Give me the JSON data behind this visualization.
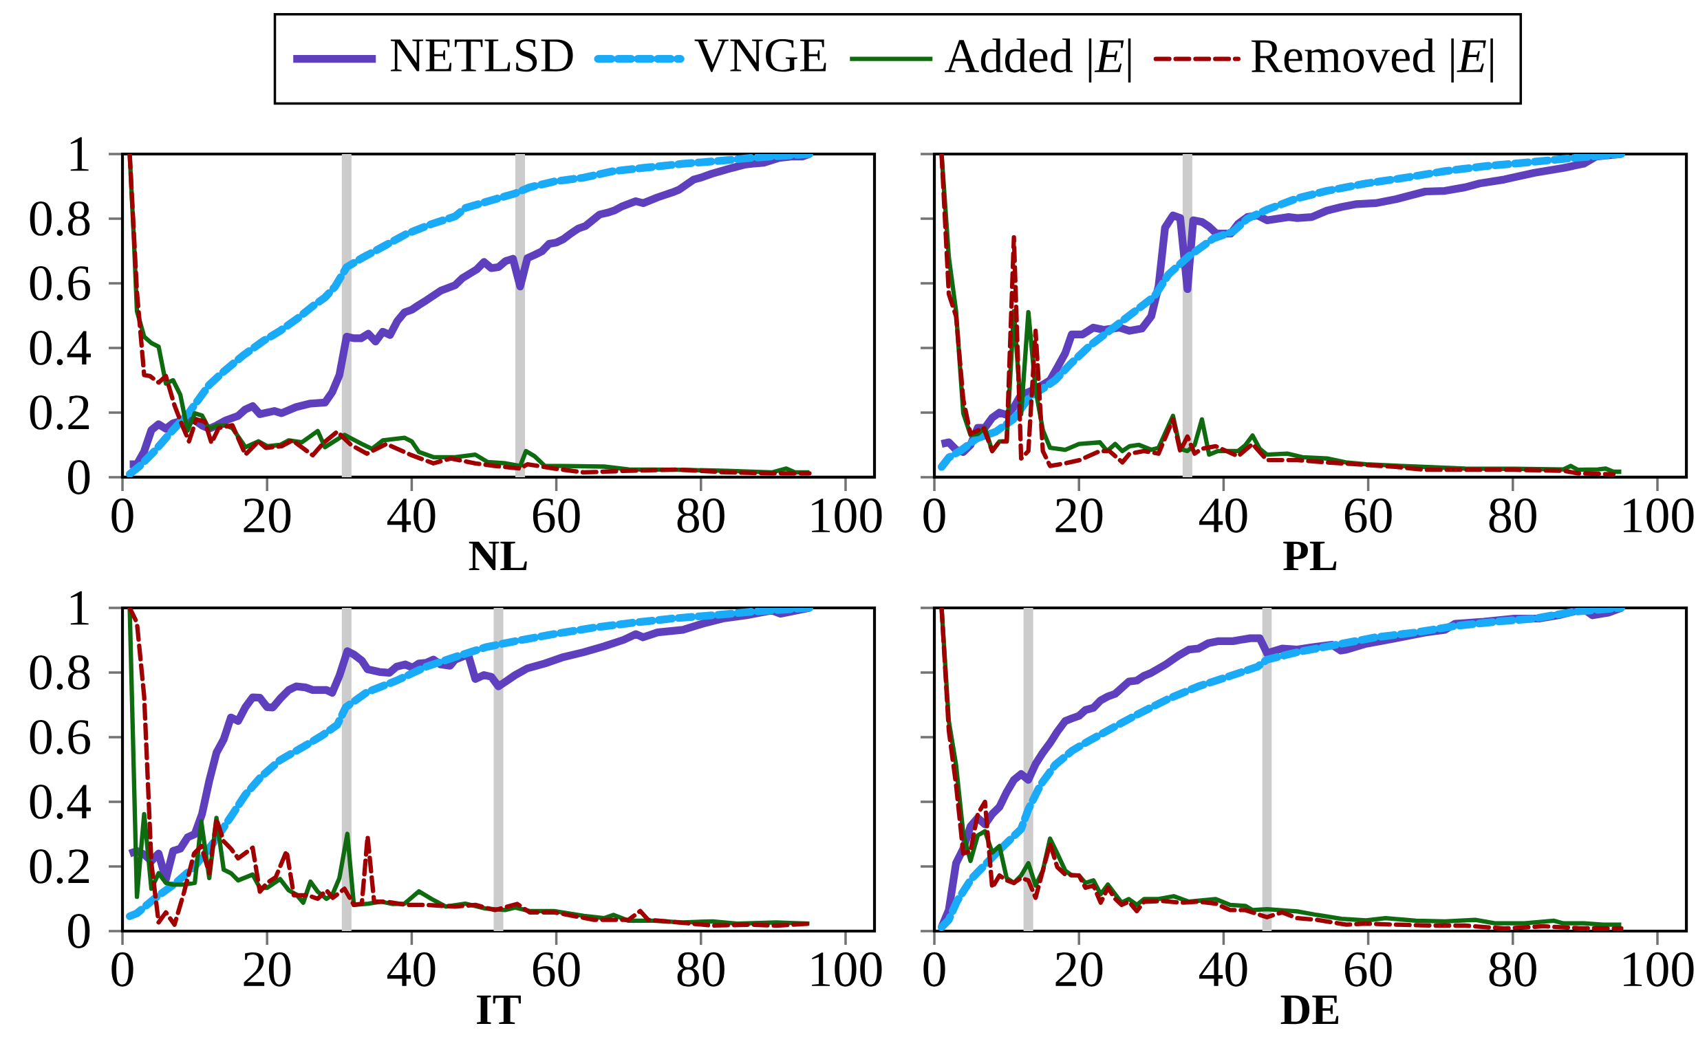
{
  "chart_data": [
    {
      "type": "line",
      "xlabel": "NL",
      "xlim": [
        0,
        104
      ],
      "ylim": [
        0,
        1
      ],
      "xticks": [
        0,
        20,
        40,
        60,
        80,
        100
      ],
      "yticks": [
        0,
        0.2,
        0.4,
        0.6,
        0.8,
        1
      ],
      "legend": "top",
      "ref_lines": [
        {
          "axis": "x",
          "value": 31,
          "color": "#cccccc"
        },
        {
          "axis": "x",
          "value": 55,
          "color": "#cccccc"
        }
      ],
      "series": [
        {
          "name": "NETLSD",
          "color": "#5e3fbe",
          "line_style": "solid",
          "x": [
            1,
            2,
            3,
            4,
            5,
            6,
            7,
            8.5,
            10,
            11,
            12,
            13,
            14.3,
            16,
            17,
            18,
            19,
            21,
            22,
            24,
            26,
            28,
            29,
            30,
            31,
            32,
            33,
            34,
            35,
            36,
            37,
            38,
            39,
            40,
            41,
            42,
            43,
            44,
            46,
            47,
            49,
            50,
            51,
            52,
            53,
            54,
            55,
            56,
            57,
            58,
            59,
            60,
            61,
            62,
            63,
            64,
            65,
            66,
            67,
            68,
            69,
            71,
            72,
            74,
            76,
            77,
            79,
            80,
            81.5,
            84.3,
            86,
            87,
            88.7,
            90.8,
            92.5,
            94,
            95
          ],
          "values": [
            0.04,
            0.04,
            0.08,
            0.146,
            0.164,
            0.15,
            0.167,
            0.176,
            0.176,
            0.16,
            0.15,
            0.16,
            0.176,
            0.19,
            0.21,
            0.22,
            0.195,
            0.205,
            0.198,
            0.217,
            0.228,
            0.231,
            0.263,
            0.316,
            0.435,
            0.43,
            0.43,
            0.444,
            0.42,
            0.45,
            0.44,
            0.483,
            0.51,
            0.518,
            0.533,
            0.547,
            0.562,
            0.577,
            0.594,
            0.616,
            0.643,
            0.666,
            0.647,
            0.65,
            0.669,
            0.676,
            0.59,
            0.678,
            0.688,
            0.699,
            0.722,
            0.726,
            0.737,
            0.754,
            0.769,
            0.777,
            0.795,
            0.813,
            0.818,
            0.825,
            0.837,
            0.854,
            0.848,
            0.866,
            0.881,
            0.89,
            0.921,
            0.927,
            0.939,
            0.957,
            0.967,
            0.97,
            0.973,
            0.988,
            0.992,
            0.992,
            1.0
          ]
        },
        {
          "name": "VNGE",
          "color": "#19aaf8",
          "line_style": "dashed",
          "x": [
            1,
            2.4,
            4.4,
            6.5,
            9.2,
            12,
            14,
            16.7,
            19.5,
            21.8,
            24.2,
            26.3,
            28,
            29.4,
            31,
            33.1,
            36.5,
            39.2,
            42.7,
            46,
            47.4,
            50.9,
            54.3,
            56.3,
            59.7,
            63.8,
            67.9,
            72,
            77.5,
            81.6,
            87,
            95
          ],
          "values": [
            0.01,
            0.035,
            0.08,
            0.134,
            0.2,
            0.286,
            0.327,
            0.377,
            0.422,
            0.453,
            0.491,
            0.529,
            0.556,
            0.59,
            0.65,
            0.678,
            0.719,
            0.752,
            0.783,
            0.807,
            0.833,
            0.856,
            0.878,
            0.897,
            0.915,
            0.927,
            0.947,
            0.957,
            0.97,
            0.977,
            0.988,
            1.0
          ]
        },
        {
          "name": "Added |*E*|",
          "color": "#0f6b0f",
          "line_style": "solid",
          "x": [
            1,
            1.6,
            2,
            3,
            4,
            5,
            6,
            7,
            8,
            9,
            10,
            11,
            12,
            13,
            14.3,
            15.2,
            17,
            18.8,
            20,
            21.8,
            23,
            24.8,
            27,
            28,
            30.7,
            33.1,
            34.5,
            36,
            39,
            40,
            41,
            43,
            46,
            48.8,
            50.5,
            53,
            55,
            55.8,
            57,
            58.4,
            61,
            66.6,
            70,
            76.8,
            83.6,
            89.8,
            91.8,
            93,
            95
          ],
          "values": [
            1.0,
            0.726,
            0.514,
            0.435,
            0.415,
            0.404,
            0.29,
            0.3,
            0.255,
            0.144,
            0.198,
            0.191,
            0.149,
            0.16,
            0.16,
            0.152,
            0.093,
            0.111,
            0.096,
            0.1,
            0.114,
            0.108,
            0.143,
            0.093,
            0.131,
            0.103,
            0.088,
            0.114,
            0.122,
            0.111,
            0.078,
            0.062,
            0.062,
            0.07,
            0.047,
            0.043,
            0.035,
            0.081,
            0.065,
            0.035,
            0.035,
            0.033,
            0.024,
            0.023,
            0.02,
            0.015,
            0.027,
            0.015,
            0.015
          ]
        },
        {
          "name": "Removed |*E*|",
          "color": "#a00000",
          "line_style": "dashed",
          "x": [
            1,
            2,
            3,
            3.8,
            5,
            6,
            7.2,
            8.2,
            9.2,
            10.2,
            11.4,
            12.3,
            13.3,
            15.2,
            17,
            18.8,
            19.8,
            22,
            23.5,
            24.6,
            26.3,
            27.8,
            29.7,
            31.6,
            33.8,
            36.5,
            40,
            43,
            45.4,
            48.8,
            51.5,
            55,
            56,
            59.7,
            63.8,
            70,
            76.8,
            83.6,
            89.8,
            95
          ],
          "values": [
            1.0,
            0.574,
            0.316,
            0.313,
            0.293,
            0.313,
            0.222,
            0.164,
            0.111,
            0.179,
            0.172,
            0.106,
            0.152,
            0.161,
            0.07,
            0.111,
            0.091,
            0.096,
            0.114,
            0.096,
            0.068,
            0.106,
            0.141,
            0.1,
            0.073,
            0.103,
            0.068,
            0.043,
            0.058,
            0.043,
            0.035,
            0.027,
            0.04,
            0.027,
            0.015,
            0.02,
            0.024,
            0.015,
            0.012,
            0.012
          ]
        }
      ]
    },
    {
      "type": "line",
      "xlabel": "PL",
      "xlim": [
        0,
        104
      ],
      "ylim": [
        0,
        1
      ],
      "xticks": [
        0,
        20,
        40,
        60,
        80,
        100
      ],
      "yticks": [
        0,
        0.2,
        0.4,
        0.6,
        0.8,
        1
      ],
      "tick_labels": "x",
      "ref_lines": [
        {
          "axis": "x",
          "value": 35,
          "color": "#cccccc"
        }
      ],
      "series": [
        {
          "color": "#5e3fbe",
          "line_style": "solid",
          "x": [
            1,
            2,
            3,
            4,
            5,
            6,
            7,
            8,
            9,
            10,
            11,
            12,
            13,
            14,
            15,
            16,
            17,
            18.1,
            19,
            20.5,
            22,
            23.5,
            25.6,
            27,
            28.7,
            30,
            31,
            31.9,
            33,
            34,
            35,
            35.8,
            37,
            38,
            39,
            41,
            42,
            43.3,
            44.7,
            46,
            49,
            50.2,
            52.2,
            54.3,
            56.3,
            58.4,
            61,
            63.8,
            67.9,
            70.6,
            73.4,
            75.4,
            78.8,
            83,
            87,
            89.8,
            91.5,
            95
          ],
          "values": [
            0.103,
            0.108,
            0.085,
            0.078,
            0.1,
            0.153,
            0.153,
            0.184,
            0.2,
            0.193,
            0.217,
            0.255,
            0.263,
            0.274,
            0.286,
            0.3,
            0.339,
            0.384,
            0.442,
            0.442,
            0.463,
            0.456,
            0.463,
            0.453,
            0.46,
            0.498,
            0.59,
            0.772,
            0.81,
            0.802,
            0.582,
            0.795,
            0.79,
            0.775,
            0.754,
            0.754,
            0.784,
            0.805,
            0.81,
            0.795,
            0.805,
            0.802,
            0.805,
            0.825,
            0.836,
            0.845,
            0.848,
            0.86,
            0.884,
            0.886,
            0.897,
            0.909,
            0.921,
            0.942,
            0.957,
            0.97,
            0.992,
            1.0
          ]
        },
        {
          "color": "#19aaf8",
          "line_style": "dashed",
          "x": [
            1,
            2,
            3.8,
            5.8,
            8.5,
            10.9,
            13.3,
            15,
            16.7,
            18.8,
            21.5,
            24.9,
            27.6,
            30.4,
            32.4,
            35.2,
            38.6,
            41.3,
            43.3,
            46,
            50.2,
            54.3,
            59.7,
            65.2,
            70.6,
            76,
            81.6,
            87,
            95
          ],
          "values": [
            0.032,
            0.061,
            0.085,
            0.119,
            0.141,
            0.179,
            0.252,
            0.274,
            0.3,
            0.35,
            0.407,
            0.465,
            0.511,
            0.559,
            0.628,
            0.684,
            0.739,
            0.76,
            0.8,
            0.828,
            0.863,
            0.886,
            0.909,
            0.927,
            0.947,
            0.962,
            0.973,
            0.985,
            1.0
          ]
        },
        {
          "color": "#0f6b0f",
          "line_style": "solid",
          "x": [
            1,
            2,
            3,
            4,
            5,
            6,
            7,
            8,
            9,
            10,
            11,
            12,
            13,
            14,
            15,
            16,
            18.1,
            20,
            22.9,
            23.9,
            25,
            26,
            27,
            28.3,
            30,
            31,
            33,
            34,
            35,
            36,
            37,
            38,
            39.2,
            42,
            43,
            44,
            45,
            46,
            48.8,
            50.9,
            54.3,
            56.9,
            59.7,
            66.6,
            73.4,
            80.2,
            87,
            88,
            89,
            91.8,
            92.8,
            93.9,
            95
          ],
          "values": [
            1.0,
            0.681,
            0.514,
            0.198,
            0.131,
            0.134,
            0.152,
            0.081,
            0.111,
            0.111,
            0.514,
            0.195,
            0.511,
            0.271,
            0.146,
            0.091,
            0.085,
            0.103,
            0.108,
            0.081,
            0.103,
            0.081,
            0.096,
            0.1,
            0.085,
            0.091,
            0.19,
            0.088,
            0.081,
            0.1,
            0.179,
            0.07,
            0.081,
            0.081,
            0.099,
            0.129,
            0.088,
            0.07,
            0.073,
            0.062,
            0.058,
            0.046,
            0.04,
            0.033,
            0.027,
            0.026,
            0.024,
            0.035,
            0.023,
            0.024,
            0.027,
            0.017,
            0.017
          ]
        },
        {
          "color": "#a00000",
          "line_style": "dashed",
          "x": [
            1,
            2,
            3,
            4,
            5,
            6.8,
            8,
            9,
            10,
            11,
            12,
            13,
            14,
            15,
            16,
            18.1,
            20.1,
            22.9,
            24.2,
            26,
            27,
            29,
            31,
            33,
            34,
            35,
            36,
            37,
            38.9,
            42,
            44,
            46,
            50.2,
            54.3,
            58.4,
            63.8,
            67.9,
            73.4,
            80.2,
            87,
            89,
            93.9
          ],
          "values": [
            1.0,
            0.567,
            0.498,
            0.24,
            0.134,
            0.153,
            0.081,
            0.111,
            0.111,
            0.742,
            0.058,
            0.081,
            0.453,
            0.081,
            0.035,
            0.043,
            0.053,
            0.081,
            0.081,
            0.046,
            0.073,
            0.081,
            0.073,
            0.179,
            0.081,
            0.126,
            0.073,
            0.088,
            0.096,
            0.065,
            0.103,
            0.053,
            0.053,
            0.046,
            0.04,
            0.032,
            0.023,
            0.023,
            0.023,
            0.02,
            0.012,
            0.009
          ]
        }
      ]
    },
    {
      "type": "line",
      "xlabel": "IT",
      "xlim": [
        0,
        104
      ],
      "ylim": [
        0,
        1
      ],
      "xticks": [
        0,
        20,
        40,
        60,
        80,
        100
      ],
      "yticks": [
        0,
        0.2,
        0.4,
        0.6,
        0.8,
        1
      ],
      "ref_lines": [
        {
          "axis": "x",
          "value": 31,
          "color": "#cccccc"
        },
        {
          "axis": "x",
          "value": 52,
          "color": "#cccccc"
        }
      ],
      "series": [
        {
          "color": "#5e3fbe",
          "line_style": "solid",
          "x": [
            1,
            2,
            3,
            4,
            5,
            6,
            7,
            8,
            9,
            10,
            11,
            12,
            13,
            14,
            15,
            16,
            17,
            18,
            19,
            20,
            20.8,
            21.8,
            23,
            24,
            25.3,
            26.3,
            28.2,
            29,
            30,
            31.1,
            32,
            33.1,
            33.9,
            35.5,
            36.9,
            37.9,
            39.1,
            40.1,
            41,
            42,
            43,
            44,
            45.3,
            46,
            47.8,
            48.8,
            50,
            51,
            52,
            53,
            54.3,
            56,
            58.4,
            61,
            63.8,
            66.6,
            69.3,
            71,
            72,
            74,
            77.5,
            80.2,
            83,
            86.3,
            89.8,
            91,
            95
          ],
          "values": [
            0.24,
            0.248,
            0.237,
            0.217,
            0.24,
            0.16,
            0.248,
            0.255,
            0.29,
            0.3,
            0.362,
            0.465,
            0.552,
            0.593,
            0.661,
            0.65,
            0.693,
            0.723,
            0.722,
            0.693,
            0.692,
            0.719,
            0.746,
            0.757,
            0.754,
            0.746,
            0.746,
            0.737,
            0.79,
            0.866,
            0.856,
            0.837,
            0.81,
            0.802,
            0.799,
            0.818,
            0.825,
            0.815,
            0.828,
            0.83,
            0.84,
            0.825,
            0.821,
            0.84,
            0.856,
            0.78,
            0.792,
            0.787,
            0.757,
            0.772,
            0.792,
            0.813,
            0.828,
            0.848,
            0.863,
            0.881,
            0.901,
            0.919,
            0.909,
            0.924,
            0.932,
            0.951,
            0.967,
            0.977,
            0.992,
            0.982,
            1.0
          ]
        },
        {
          "color": "#19aaf8",
          "line_style": "dashed",
          "x": [
            1,
            2,
            4.4,
            7.2,
            9.9,
            12.6,
            15,
            17,
            19.1,
            21.8,
            25.6,
            27.6,
            29.7,
            30.9,
            33.8,
            37.9,
            42,
            46,
            50.2,
            54.3,
            59.7,
            65.2,
            70.6,
            76,
            81.6,
            87,
            95
          ],
          "values": [
            0.046,
            0.055,
            0.1,
            0.146,
            0.198,
            0.274,
            0.354,
            0.422,
            0.476,
            0.529,
            0.578,
            0.605,
            0.638,
            0.693,
            0.739,
            0.775,
            0.818,
            0.848,
            0.878,
            0.897,
            0.919,
            0.939,
            0.954,
            0.967,
            0.977,
            0.988,
            1.0
          ]
        },
        {
          "color": "#0f6b0f",
          "line_style": "solid",
          "x": [
            1,
            2,
            3,
            4,
            5,
            6,
            7,
            8.5,
            10,
            10.9,
            12,
            13,
            14,
            15,
            16,
            18,
            19,
            20,
            21.8,
            23,
            24,
            25,
            26,
            27,
            28.2,
            29,
            30,
            31.1,
            32,
            34,
            35.8,
            37.3,
            39,
            41,
            42.7,
            44.7,
            47.4,
            50.2,
            52.9,
            54.3,
            56.3,
            59.7,
            63.8,
            66.6,
            67.9,
            70,
            73.4,
            77.5,
            81.6,
            85,
            90.4,
            95
          ],
          "values": [
            1.0,
            0.106,
            0.362,
            0.131,
            0.179,
            0.149,
            0.144,
            0.144,
            0.149,
            0.339,
            0.164,
            0.35,
            0.19,
            0.179,
            0.157,
            0.175,
            0.134,
            0.134,
            0.161,
            0.126,
            0.114,
            0.088,
            0.153,
            0.122,
            0.1,
            0.111,
            0.164,
            0.301,
            0.081,
            0.085,
            0.091,
            0.084,
            0.085,
            0.123,
            0.1,
            0.076,
            0.085,
            0.07,
            0.065,
            0.073,
            0.062,
            0.062,
            0.047,
            0.04,
            0.05,
            0.032,
            0.032,
            0.027,
            0.03,
            0.023,
            0.027,
            0.023
          ]
        },
        {
          "color": "#a00000",
          "line_style": "dashed",
          "x": [
            1,
            2,
            3,
            4,
            5,
            6,
            7.2,
            8.5,
            9.9,
            10.9,
            12,
            13,
            14,
            15,
            16,
            18,
            19,
            20,
            21.2,
            22.7,
            23.7,
            25.6,
            27,
            28.2,
            29.1,
            30.7,
            32,
            33.1,
            33.9,
            34.8,
            36.5,
            39.2,
            42,
            46,
            48.8,
            51.5,
            54.6,
            56.3,
            59.7,
            65.2,
            70,
            71.6,
            72.7,
            76.8,
            81.6,
            87,
            90.4,
            95
          ],
          "values": [
            1.0,
            0.954,
            0.726,
            0.21,
            0.027,
            0.058,
            0.02,
            0.119,
            0.24,
            0.263,
            0.179,
            0.347,
            0.278,
            0.255,
            0.225,
            0.258,
            0.122,
            0.149,
            0.167,
            0.248,
            0.111,
            0.111,
            0.1,
            0.126,
            0.103,
            0.131,
            0.081,
            0.085,
            0.293,
            0.091,
            0.091,
            0.081,
            0.081,
            0.076,
            0.081,
            0.065,
            0.084,
            0.058,
            0.058,
            0.035,
            0.035,
            0.062,
            0.035,
            0.027,
            0.017,
            0.02,
            0.017,
            0.023
          ]
        }
      ]
    },
    {
      "type": "line",
      "xlabel": "DE",
      "xlim": [
        0,
        104
      ],
      "ylim": [
        0,
        1
      ],
      "xticks": [
        0,
        20,
        40,
        60,
        80,
        100
      ],
      "yticks": [
        0,
        0.2,
        0.4,
        0.6,
        0.8,
        1
      ],
      "tick_labels": "x",
      "ref_lines": [
        {
          "axis": "x",
          "value": 13,
          "color": "#cccccc"
        },
        {
          "axis": "x",
          "value": 46,
          "color": "#cccccc"
        }
      ],
      "series": [
        {
          "color": "#5e3fbe",
          "line_style": "solid",
          "x": [
            1,
            2,
            3,
            4,
            5,
            6,
            7,
            8,
            9,
            10,
            11,
            12,
            13,
            14,
            15,
            16,
            17,
            18.1,
            19,
            20,
            20.9,
            22,
            23,
            24,
            25,
            26.9,
            28,
            29,
            30,
            32,
            33.8,
            35.2,
            36.5,
            37.9,
            39.2,
            41.3,
            42.3,
            43.7,
            45,
            46,
            48.1,
            50.2,
            52.2,
            55,
            56.2,
            57,
            59.7,
            63.8,
            67.9,
            70.6,
            72,
            76,
            80.2,
            83.6,
            86.3,
            89.8,
            91,
            93.2,
            95
          ],
          "values": [
            0.012,
            0.065,
            0.21,
            0.255,
            0.324,
            0.35,
            0.33,
            0.362,
            0.384,
            0.43,
            0.468,
            0.486,
            0.468,
            0.517,
            0.552,
            0.582,
            0.617,
            0.65,
            0.658,
            0.666,
            0.684,
            0.691,
            0.714,
            0.726,
            0.734,
            0.772,
            0.775,
            0.79,
            0.799,
            0.825,
            0.853,
            0.871,
            0.874,
            0.891,
            0.897,
            0.897,
            0.901,
            0.906,
            0.906,
            0.86,
            0.874,
            0.871,
            0.878,
            0.886,
            0.868,
            0.871,
            0.889,
            0.906,
            0.924,
            0.932,
            0.951,
            0.957,
            0.967,
            0.967,
            0.977,
            0.997,
            0.977,
            0.985,
            1.0
          ]
        },
        {
          "color": "#19aaf8",
          "line_style": "dashed",
          "x": [
            1,
            2,
            3.1,
            5.1,
            7.2,
            9.2,
            12,
            13,
            14.7,
            16.7,
            19.1,
            21.5,
            24.9,
            28.3,
            32.4,
            36.5,
            40.6,
            44.7,
            46,
            50.2,
            55.6,
            61,
            66.6,
            72,
            77.5,
            83,
            88.4,
            95
          ],
          "values": [
            0.012,
            0.035,
            0.091,
            0.161,
            0.21,
            0.255,
            0.316,
            0.377,
            0.453,
            0.514,
            0.559,
            0.59,
            0.632,
            0.673,
            0.719,
            0.757,
            0.787,
            0.818,
            0.84,
            0.863,
            0.886,
            0.909,
            0.924,
            0.944,
            0.957,
            0.967,
            0.988,
            1.0
          ]
        },
        {
          "color": "#0f6b0f",
          "line_style": "solid",
          "x": [
            1,
            2,
            3,
            4,
            5,
            6,
            7,
            8,
            9,
            10,
            11,
            12,
            13,
            14,
            15,
            16,
            17,
            18.1,
            19,
            20,
            20.9,
            22,
            23,
            24,
            25,
            25.9,
            26.9,
            28,
            29,
            31,
            33.1,
            35.2,
            38.9,
            40.9,
            43,
            44,
            46,
            50.2,
            52.9,
            56.3,
            59.7,
            62.4,
            66.6,
            70.6,
            74.8,
            77.5,
            81.6,
            85.7,
            87,
            89.8,
            92.5,
            95
          ],
          "values": [
            1.0,
            0.65,
            0.514,
            0.301,
            0.217,
            0.296,
            0.309,
            0.243,
            0.263,
            0.164,
            0.149,
            0.172,
            0.21,
            0.141,
            0.187,
            0.286,
            0.24,
            0.187,
            0.172,
            0.172,
            0.149,
            0.157,
            0.114,
            0.144,
            0.114,
            0.088,
            0.099,
            0.081,
            0.099,
            0.099,
            0.108,
            0.091,
            0.099,
            0.081,
            0.078,
            0.065,
            0.068,
            0.061,
            0.05,
            0.038,
            0.033,
            0.04,
            0.032,
            0.03,
            0.035,
            0.024,
            0.024,
            0.032,
            0.024,
            0.024,
            0.02,
            0.02
          ]
        },
        {
          "color": "#a00000",
          "line_style": "dashed",
          "x": [
            1,
            2,
            3,
            4,
            5,
            6,
            7,
            8,
            9,
            10,
            11,
            12,
            13,
            14,
            15,
            16,
            17,
            18.1,
            20,
            20.9,
            22,
            23,
            24,
            25,
            25.9,
            26.9,
            28,
            29,
            31.7,
            34.1,
            36.5,
            38.9,
            40.9,
            43,
            46,
            48.1,
            50.2,
            52.9,
            57,
            59.7,
            63.8,
            69.3,
            73.4,
            78.8,
            84.3,
            89,
            95
          ],
          "values": [
            1.0,
            0.62,
            0.453,
            0.24,
            0.248,
            0.362,
            0.4,
            0.134,
            0.172,
            0.157,
            0.149,
            0.164,
            0.157,
            0.103,
            0.187,
            0.27,
            0.198,
            0.175,
            0.172,
            0.134,
            0.141,
            0.088,
            0.134,
            0.1,
            0.081,
            0.091,
            0.062,
            0.091,
            0.093,
            0.088,
            0.091,
            0.085,
            0.065,
            0.065,
            0.043,
            0.058,
            0.04,
            0.035,
            0.02,
            0.023,
            0.02,
            0.017,
            0.017,
            0.008,
            0.015,
            0.009,
            0.008
          ]
        }
      ]
    }
  ]
}
